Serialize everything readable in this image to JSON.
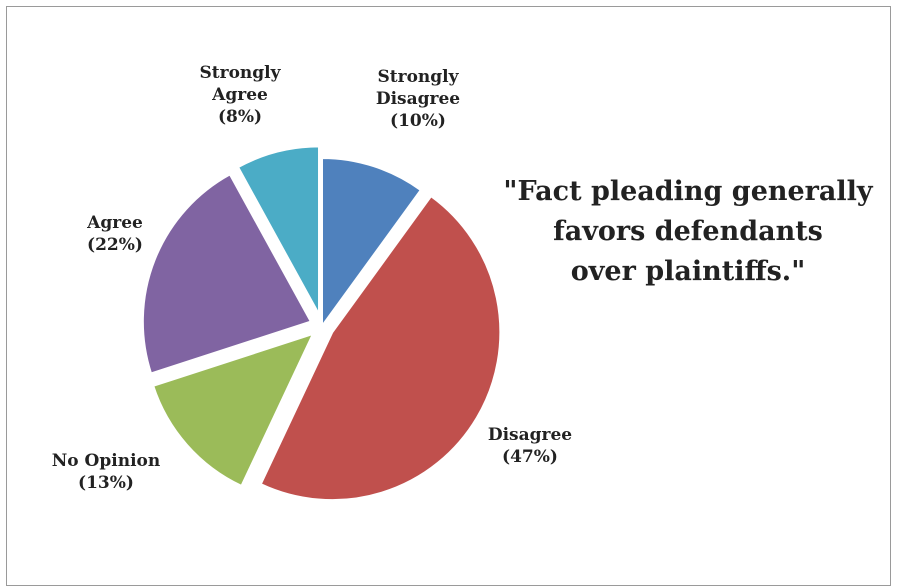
{
  "chart_data": {
    "type": "pie",
    "title_lines": [
      "\"Fact pleading generally",
      "favors defendants",
      "over plaintiffs.\""
    ],
    "slices": [
      {
        "label_lines": [
          "Strongly",
          "Disagree",
          "(10%)"
        ],
        "value": 10,
        "color": "#4f81bd",
        "exploded": false
      },
      {
        "label_lines": [
          "Disagree",
          "(47%)"
        ],
        "value": 47,
        "color": "#c0504d",
        "exploded": true
      },
      {
        "label_lines": [
          "No Opinion",
          "(13%)"
        ],
        "value": 13,
        "color": "#9bbb59",
        "exploded": true
      },
      {
        "label_lines": [
          "Agree",
          "(22%)"
        ],
        "value": 22,
        "color": "#8064a2",
        "exploded": true
      },
      {
        "label_lines": [
          "Strongly",
          "Agree",
          "(8%)"
        ],
        "value": 8,
        "color": "#4bacc6",
        "exploded": true
      }
    ]
  }
}
